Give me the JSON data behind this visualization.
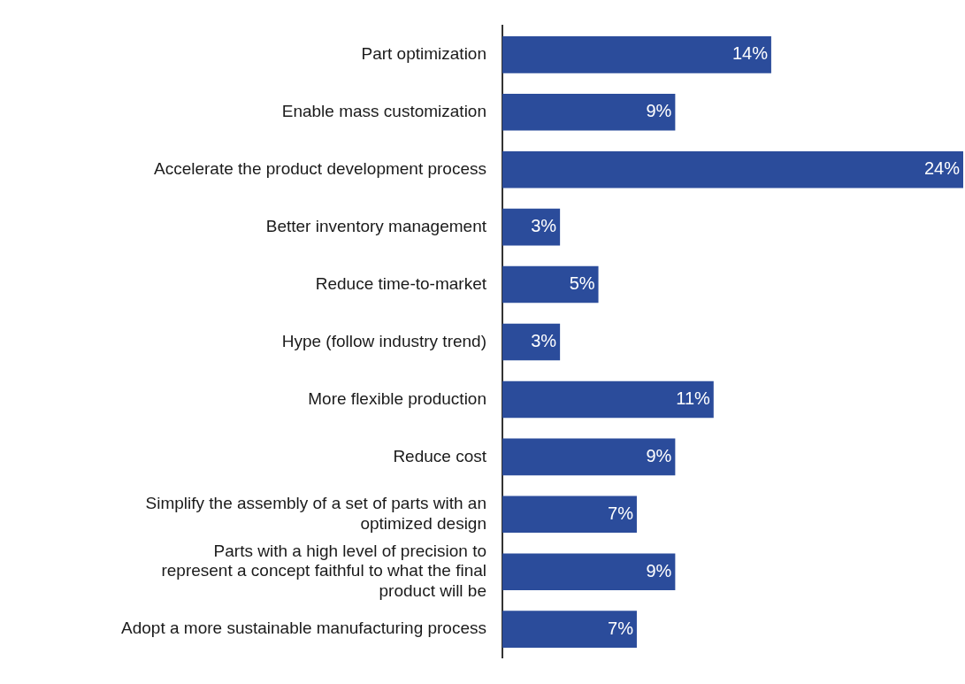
{
  "chart_data": {
    "type": "bar",
    "orientation": "horizontal",
    "color": "#2b4c9b",
    "categories": [
      "Part optimization",
      "Enable mass customization",
      "Accelerate the product development process",
      "Better inventory management",
      "Reduce time-to-market",
      "Hype (follow industry trend)",
      "More flexible production",
      "Reduce cost",
      "Simplify the assembly of a set of parts with an optimized design",
      "Parts with a high level of precision to represent a concept faithful to what the final product will be",
      "Adopt a more sustainable manufacturing process"
    ],
    "values": [
      14,
      9,
      24,
      3,
      5,
      3,
      11,
      9,
      7,
      9,
      7
    ],
    "value_labels": [
      "14%",
      "9%",
      "24%",
      "3%",
      "5%",
      "3%",
      "11%",
      "9%",
      "7%",
      "9%",
      "7%"
    ]
  }
}
